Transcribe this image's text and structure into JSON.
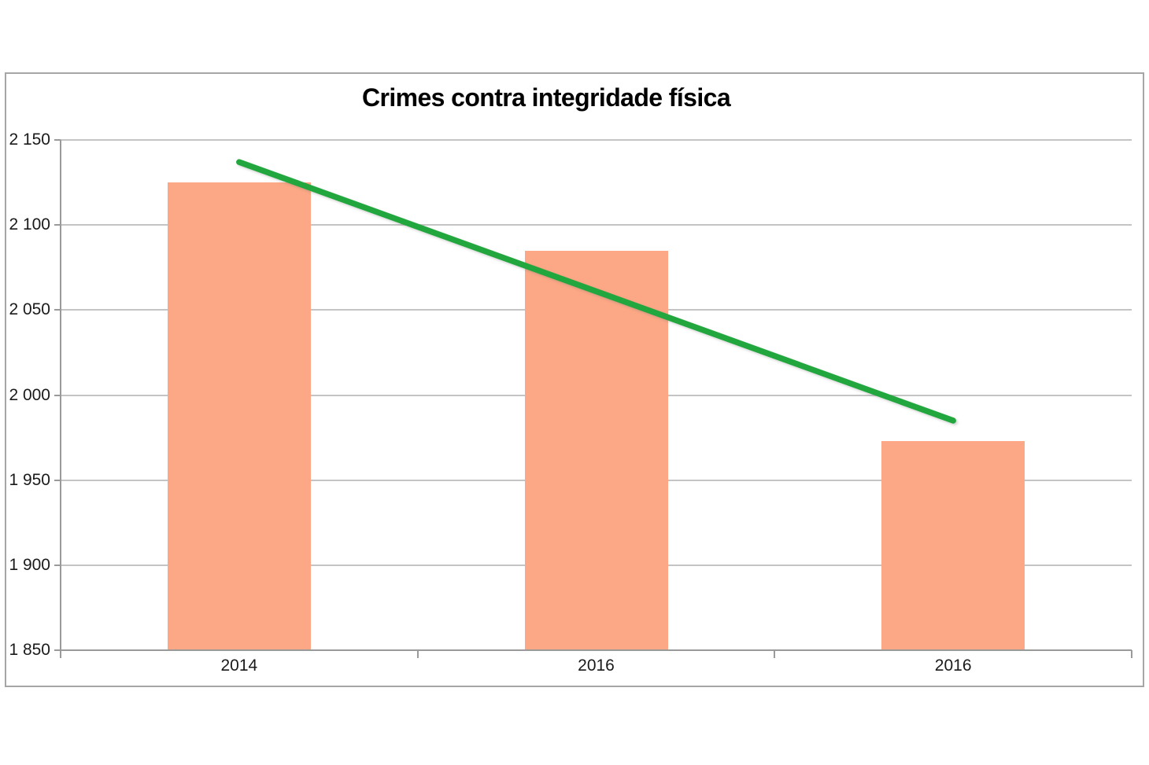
{
  "chart_data": {
    "type": "bar",
    "title": "Crimes contra integridade física",
    "categories": [
      "2014",
      "2016",
      "2016"
    ],
    "values": [
      2125,
      2085,
      1973
    ],
    "yticks": [
      "2 150",
      "2 100",
      "2 050",
      "2 000",
      "1 950",
      "1 900",
      "1 850"
    ],
    "ylim": [
      1850,
      2150
    ],
    "ytick_step": 50,
    "xlabel": "",
    "ylabel": "",
    "grid": true,
    "legend": "none",
    "trendline": {
      "type": "linear",
      "start_value": 2137,
      "end_value": 1985,
      "color": "#22A73E"
    },
    "bar_color": "#FCA785",
    "gridline_color": "#C4C4C4",
    "axis_color": "#9A9A9A",
    "frame_border_color": "#A6A6A6",
    "title_color": "#000000",
    "label_color": "#1A1A1A"
  }
}
